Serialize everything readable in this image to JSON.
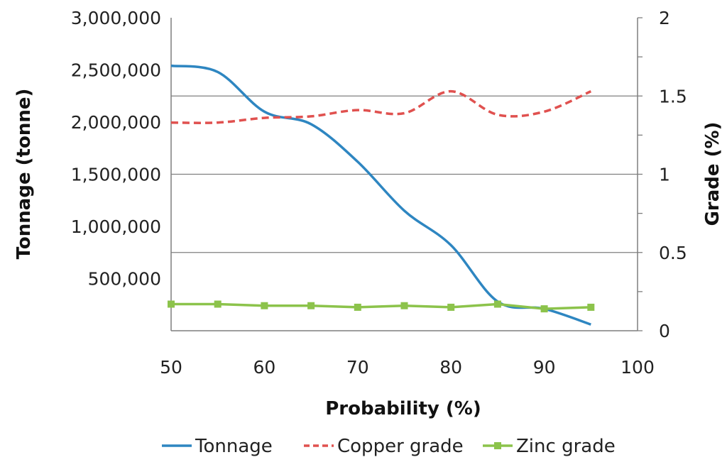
{
  "chart_data": {
    "type": "line",
    "xlabel": "Probability (%)",
    "ylabel_left": "Tonnage (tonne)",
    "ylabel_right": "Grade (%)",
    "xlim": [
      50,
      100
    ],
    "xticks": [
      50,
      60,
      70,
      80,
      90,
      100
    ],
    "ylim_left": [
      0,
      3000000
    ],
    "yticks_left": [
      500000,
      1000000,
      1500000,
      2000000,
      2500000,
      3000000
    ],
    "yticks_left_labels": [
      "500,000",
      "1,000,000",
      "1,500,000",
      "2,000,000",
      "2,500,000",
      "3,000,000"
    ],
    "ylim_right": [
      0,
      2
    ],
    "yticks_right": [
      0,
      0.5,
      1,
      1.5,
      2
    ],
    "yticks_right_labels": [
      "0",
      "0.5",
      "1",
      "1.5",
      "2"
    ],
    "gridlines_right": [
      0.5,
      1,
      1.5
    ],
    "x": [
      50,
      55,
      60,
      65,
      70,
      75,
      80,
      85,
      90,
      95
    ],
    "series": [
      {
        "name": "Tonnage",
        "axis": "left",
        "style": "solid",
        "color": "#2e86c1",
        "values": [
          2540000,
          2480000,
          2100000,
          1980000,
          1620000,
          1150000,
          820000,
          280000,
          210000,
          60000
        ]
      },
      {
        "name": "Copper grade",
        "axis": "right",
        "style": "dashed",
        "color": "#e0514f",
        "values": [
          1.33,
          1.33,
          1.36,
          1.37,
          1.41,
          1.39,
          1.53,
          1.38,
          1.4,
          1.53
        ]
      },
      {
        "name": "Zinc grade",
        "axis": "right",
        "style": "solid-marker",
        "color": "#8cc34b",
        "values": [
          0.17,
          0.17,
          0.16,
          0.16,
          0.15,
          0.16,
          0.15,
          0.17,
          0.14,
          0.15
        ]
      }
    ]
  }
}
